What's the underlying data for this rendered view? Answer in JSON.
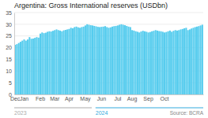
{
  "chart_data": {
    "type": "bar",
    "title": "Argentina: Gross International reserves (USDbn)",
    "categories": [
      "Dec",
      null,
      null,
      null,
      null,
      "Jan",
      null,
      null,
      null,
      null,
      null,
      null,
      null,
      null,
      "Feb",
      null,
      null,
      null,
      null,
      null,
      null,
      null,
      "Mar",
      null,
      null,
      null,
      null,
      null,
      null,
      null,
      "Apr",
      null,
      null,
      null,
      null,
      null,
      null,
      null,
      null,
      "May",
      null,
      null,
      null,
      null,
      null,
      null,
      null,
      null,
      "Jun",
      null,
      null,
      null,
      null,
      null,
      null,
      null,
      null,
      "Jul",
      null,
      null,
      null,
      null,
      null,
      null,
      null,
      "Aug",
      null,
      null,
      null,
      null,
      null,
      null,
      null,
      null,
      "Sep",
      null,
      null,
      null,
      null,
      null,
      null,
      null,
      null,
      "Oct",
      null,
      null,
      null,
      null,
      null,
      null,
      null,
      null,
      null,
      null,
      null,
      null,
      null,
      null,
      null,
      null,
      null,
      null,
      null,
      null,
      null
    ],
    "values": [
      21.2,
      21.5,
      22.0,
      22.5,
      23.0,
      23.5,
      23.0,
      23.5,
      24.5,
      23.8,
      23.9,
      24.2,
      24.5,
      24.3,
      26.0,
      26.5,
      26.2,
      26.4,
      26.8,
      27.0,
      26.9,
      27.2,
      27.5,
      27.8,
      27.5,
      27.3,
      27.0,
      27.4,
      27.6,
      27.8,
      28.0,
      28.5,
      28.3,
      28.8,
      29.0,
      28.7,
      28.5,
      28.8,
      29.0,
      29.5,
      30.0,
      29.8,
      29.6,
      29.5,
      29.3,
      29.1,
      28.9,
      28.8,
      28.9,
      29.0,
      29.2,
      28.8,
      28.5,
      28.7,
      29.0,
      29.2,
      29.3,
      29.5,
      29.8,
      30.0,
      29.8,
      29.6,
      29.3,
      29.0,
      28.8,
      27.5,
      27.3,
      27.0,
      26.8,
      26.5,
      26.9,
      27.2,
      27.0,
      26.8,
      26.5,
      26.7,
      27.0,
      27.2,
      27.5,
      27.3,
      27.1,
      27.0,
      26.8,
      26.5,
      26.7,
      27.0,
      27.3,
      26.8,
      27.2,
      27.5,
      27.3,
      27.5,
      27.8,
      28.0,
      28.3,
      28.5,
      27.5,
      27.8,
      28.2,
      28.5,
      28.8,
      29.0,
      29.2,
      29.5,
      29.8
    ],
    "color": "#55ccee",
    "ylim": [
      0,
      35
    ],
    "yticks": [
      0,
      5,
      10,
      15,
      20,
      25,
      30,
      35
    ],
    "grid": true,
    "annotations": [
      {
        "text": "2023",
        "color": "#aaaaaa"
      },
      {
        "text": "2024",
        "color": "#33aadd"
      },
      {
        "text": "Source: BCRA"
      }
    ]
  }
}
